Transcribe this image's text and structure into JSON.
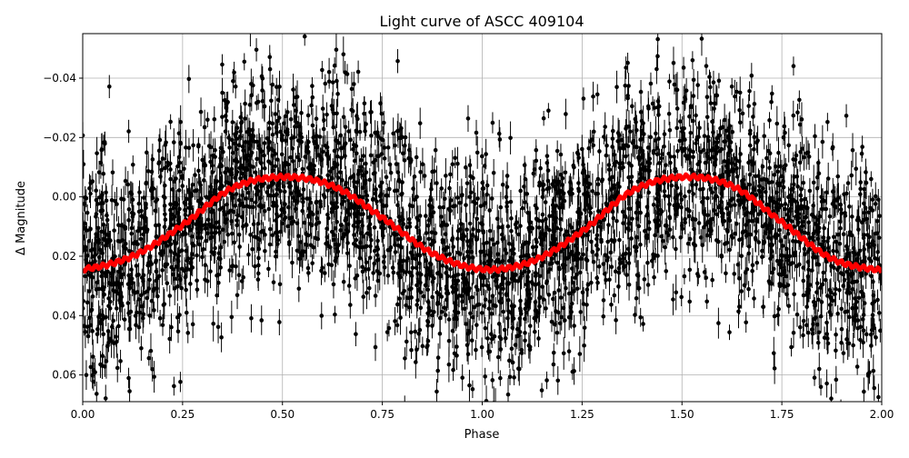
{
  "chart_data": {
    "type": "scatter",
    "title": "Light curve of ASCC 409104",
    "xlabel": "Phase",
    "ylabel": "Δ Magnitude",
    "xlim": [
      0,
      2
    ],
    "ylim": [
      0.069,
      -0.055
    ],
    "y_inverted": true,
    "grid": true,
    "xticks": [
      0,
      0.25,
      0.5,
      0.75,
      1.0,
      1.25,
      1.5,
      1.75,
      2.0
    ],
    "xtick_labels": [
      "0.00",
      "0.25",
      "0.50",
      "0.75",
      "1.00",
      "1.25",
      "1.50",
      "1.75",
      "2.00"
    ],
    "yticks": [
      -0.04,
      -0.02,
      0.0,
      0.02,
      0.04,
      0.06
    ],
    "ytick_labels": [
      "−0.04",
      "−0.02",
      "0.00",
      "0.02",
      "0.04",
      "0.06"
    ],
    "series": [
      {
        "kind": "errorbar-scatter",
        "color": "#000000",
        "scatter_sigma": 0.018,
        "typical_error": 0.004,
        "follows": "model"
      },
      {
        "kind": "line",
        "id": "model",
        "color": "#ff0000",
        "x": [
          0,
          0.125,
          0.25,
          0.375,
          0.5,
          0.625,
          0.75,
          0.875,
          1.0,
          1.125,
          1.25,
          1.375,
          1.5,
          1.625,
          1.75,
          1.875,
          2.0
        ],
        "y": [
          0.0244,
          0.02,
          0.0095,
          -0.003,
          -0.0067,
          -0.0037,
          0.007,
          0.019,
          0.0244,
          0.0217,
          0.0116,
          -0.002,
          -0.0067,
          -0.0037,
          0.0085,
          0.0208,
          0.0247
        ]
      }
    ]
  }
}
